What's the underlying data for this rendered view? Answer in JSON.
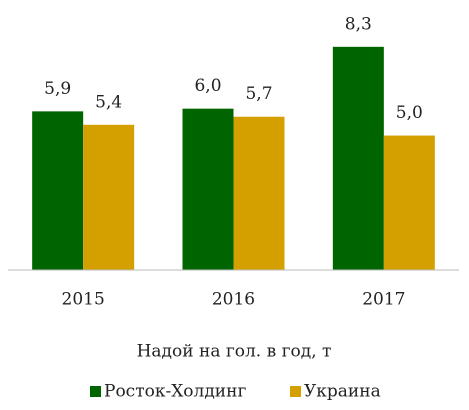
{
  "chart_data": {
    "type": "bar",
    "categories": [
      "2015",
      "2016",
      "2017"
    ],
    "series": [
      {
        "name": "Росток-Холдинг",
        "color": "#006400",
        "values": [
          5.9,
          6.0,
          8.3
        ],
        "value_labels": [
          "5,9",
          "6,0",
          "8,3"
        ]
      },
      {
        "name": "Украина",
        "color": "#d4a000",
        "values": [
          5.4,
          5.7,
          5.0
        ],
        "value_labels": [
          "5,4",
          "5,7",
          "5,0"
        ]
      }
    ],
    "xlabel": "Надой на гол. в год, т",
    "ylim": [
      0,
      9
    ],
    "legend": "bottom"
  }
}
